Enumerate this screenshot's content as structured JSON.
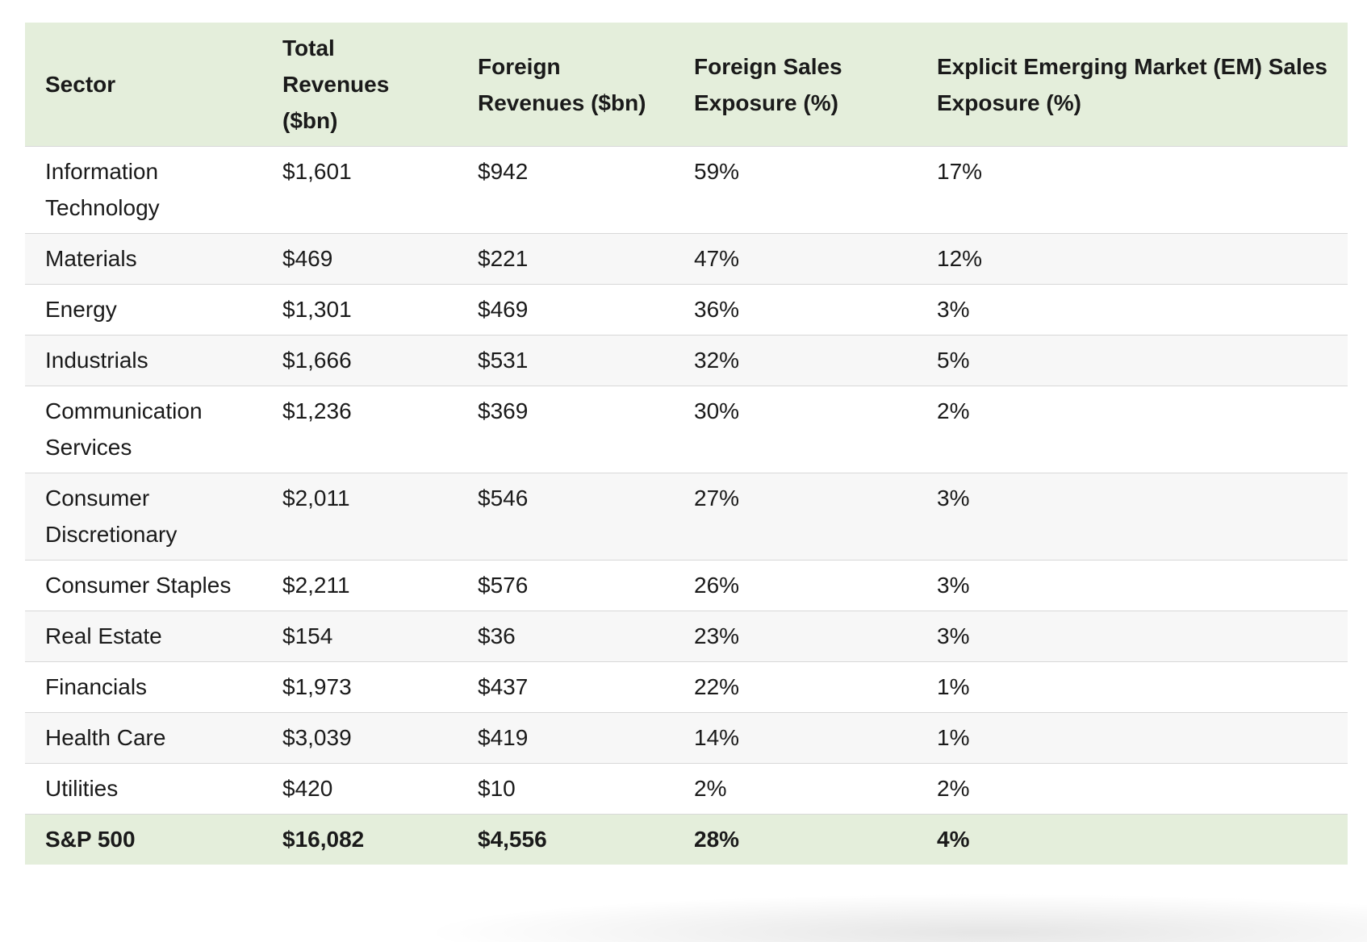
{
  "table": {
    "headers": [
      "Sector",
      "Total Revenues ($bn)",
      "Foreign Revenues ($bn)",
      "Foreign Sales Exposure (%)",
      "Explicit Emerging Market (EM) Sales Exposure (%)"
    ],
    "rows": [
      [
        "Information Technology",
        "$1,601",
        "$942",
        "59%",
        "17%"
      ],
      [
        "Materials",
        "$469",
        "$221",
        "47%",
        "12%"
      ],
      [
        "Energy",
        "$1,301",
        "$469",
        "36%",
        "3%"
      ],
      [
        "Industrials",
        "$1,666",
        "$531",
        "32%",
        "5%"
      ],
      [
        "Communication Services",
        "$1,236",
        "$369",
        "30%",
        "2%"
      ],
      [
        "Consumer Discretionary",
        "$2,011",
        "$546",
        "27%",
        "3%"
      ],
      [
        "Consumer Staples",
        "$2,211",
        "$576",
        "26%",
        "3%"
      ],
      [
        "Real Estate",
        "$154",
        "$36",
        "23%",
        "3%"
      ],
      [
        "Financials",
        "$1,973",
        "$437",
        "22%",
        "1%"
      ],
      [
        "Health Care",
        "$3,039",
        "$419",
        "14%",
        "1%"
      ],
      [
        "Utilities",
        "$420",
        "$10",
        "2%",
        "2%"
      ]
    ],
    "total": [
      "S&P 500",
      "$16,082",
      "$4,556",
      "28%",
      "4%"
    ]
  },
  "colors": {
    "header_background": "#e4eedb",
    "alt_row_background": "#f7f7f7",
    "border": "#d8d8d8"
  }
}
